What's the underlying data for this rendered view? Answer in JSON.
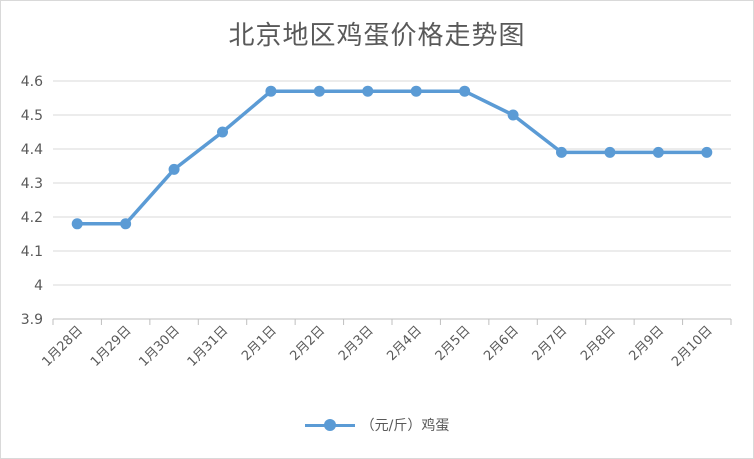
{
  "chart_data": {
    "type": "line",
    "title": "北京地区鸡蛋价格走势图",
    "categories": [
      "1月28日",
      "1月29日",
      "1月30日",
      "1月31日",
      "2月1日",
      "2月2日",
      "2月3日",
      "2月4日",
      "2月5日",
      "2月6日",
      "2月7日",
      "2月8日",
      "2月9日",
      "2月10日"
    ],
    "series": [
      {
        "name": "（元/斤）鸡蛋",
        "values": [
          4.18,
          4.18,
          4.34,
          4.45,
          4.57,
          4.57,
          4.57,
          4.57,
          4.57,
          4.5,
          4.39,
          4.39,
          4.39,
          4.39
        ]
      }
    ],
    "ylim": [
      3.9,
      4.6
    ],
    "yticks": [
      "3.9",
      "4",
      "4.1",
      "4.2",
      "4.3",
      "4.4",
      "4.5",
      "4.6"
    ],
    "grid": true,
    "legend": "bottom",
    "colors": {
      "line": "#5b9bd5",
      "grid": "#d9d9d9",
      "text": "#595959"
    }
  }
}
